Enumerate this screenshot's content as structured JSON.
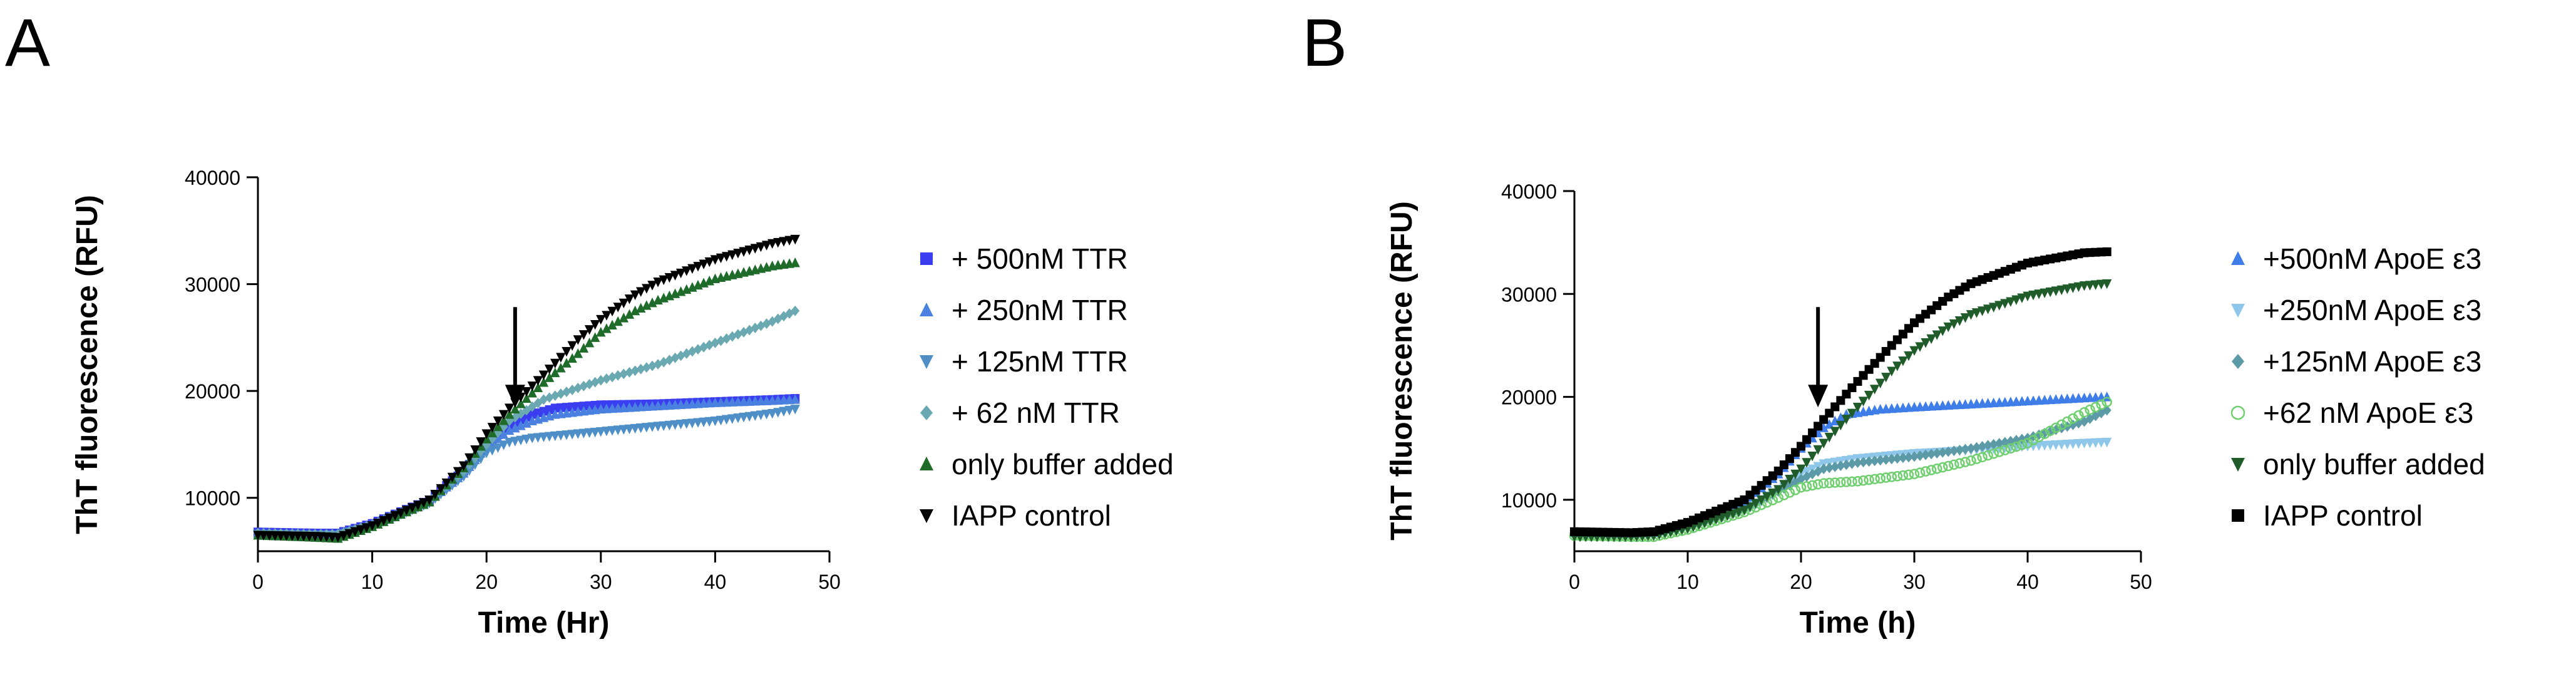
{
  "panels": [
    {
      "letter": "A"
    },
    {
      "letter": "B"
    }
  ],
  "chart_data": [
    {
      "type": "scatter",
      "panel": "A",
      "xlabel": "Time (Hr)",
      "ylabel": "ThT fluorescence (RFU)",
      "xlim": [
        0,
        50
      ],
      "ylim": [
        5000,
        40000
      ],
      "xticks": [
        0,
        10,
        20,
        30,
        40,
        50
      ],
      "yticks": [
        10000,
        20000,
        30000,
        40000
      ],
      "grid": false,
      "legend_position": "right",
      "annotation": {
        "type": "arrow",
        "x": 22.5,
        "y": 18000
      },
      "series": [
        {
          "name": "+ 500nM TTR",
          "marker": "square",
          "color": "#3a3df0",
          "points": [
            [
              0,
              6800
            ],
            [
              5,
              6700
            ],
            [
              7,
              6700
            ],
            [
              10,
              7600
            ],
            [
              15,
              9800
            ],
            [
              18,
              12500
            ],
            [
              20,
              15000
            ],
            [
              22,
              16800
            ],
            [
              24,
              17800
            ],
            [
              26,
              18400
            ],
            [
              30,
              18700
            ],
            [
              35,
              18800
            ],
            [
              40,
              19000
            ],
            [
              45,
              19200
            ],
            [
              47,
              19300
            ]
          ]
        },
        {
          "name": "+ 250nM TTR",
          "marker": "triangle-up",
          "color": "#4a80e0",
          "points": [
            [
              0,
              6700
            ],
            [
              5,
              6600
            ],
            [
              7,
              6600
            ],
            [
              10,
              7500
            ],
            [
              15,
              9700
            ],
            [
              18,
              12300
            ],
            [
              20,
              14800
            ],
            [
              22,
              16300
            ],
            [
              24,
              17200
            ],
            [
              26,
              17800
            ],
            [
              30,
              18300
            ],
            [
              35,
              18600
            ],
            [
              40,
              18900
            ],
            [
              45,
              19100
            ],
            [
              47,
              19200
            ]
          ]
        },
        {
          "name": "+ 125nM TTR",
          "marker": "triangle-down",
          "color": "#4f8fc7",
          "points": [
            [
              0,
              6600
            ],
            [
              5,
              6500
            ],
            [
              7,
              6500
            ],
            [
              10,
              7400
            ],
            [
              15,
              9500
            ],
            [
              18,
              12000
            ],
            [
              20,
              14200
            ],
            [
              22,
              15200
            ],
            [
              24,
              15600
            ],
            [
              26,
              15800
            ],
            [
              30,
              16200
            ],
            [
              35,
              16700
            ],
            [
              40,
              17200
            ],
            [
              45,
              17900
            ],
            [
              47,
              18300
            ]
          ]
        },
        {
          "name": "+ 62 nM TTR",
          "marker": "diamond",
          "color": "#6aa8b2",
          "points": [
            [
              0,
              6700
            ],
            [
              5,
              6600
            ],
            [
              7,
              6600
            ],
            [
              10,
              7500
            ],
            [
              15,
              9700
            ],
            [
              18,
              12500
            ],
            [
              20,
              15000
            ],
            [
              22,
              17200
            ],
            [
              25,
              19200
            ],
            [
              30,
              21000
            ],
            [
              35,
              22500
            ],
            [
              40,
              24500
            ],
            [
              45,
              26500
            ],
            [
              47,
              27500
            ]
          ]
        },
        {
          "name": "only buffer added",
          "marker": "triangle-up",
          "color": "#1f6b2a",
          "points": [
            [
              0,
              6500
            ],
            [
              5,
              6300
            ],
            [
              7,
              6200
            ],
            [
              10,
              7300
            ],
            [
              15,
              9600
            ],
            [
              18,
              12800
            ],
            [
              20,
              15500
            ],
            [
              22,
              17800
            ],
            [
              25,
              20800
            ],
            [
              28,
              23500
            ],
            [
              30,
              25500
            ],
            [
              33,
              27500
            ],
            [
              35,
              28500
            ],
            [
              40,
              30500
            ],
            [
              45,
              31700
            ],
            [
              47,
              32000
            ]
          ]
        },
        {
          "name": "IAPP control",
          "marker": "triangle-down",
          "color": "#000000",
          "points": [
            [
              0,
              6500
            ],
            [
              5,
              6400
            ],
            [
              7,
              6300
            ],
            [
              10,
              7400
            ],
            [
              15,
              9800
            ],
            [
              18,
              13000
            ],
            [
              20,
              16000
            ],
            [
              22,
              18400
            ],
            [
              25,
              21500
            ],
            [
              28,
              24800
            ],
            [
              30,
              26700
            ],
            [
              33,
              29000
            ],
            [
              35,
              30200
            ],
            [
              40,
              32300
            ],
            [
              45,
              33800
            ],
            [
              47,
              34200
            ]
          ]
        }
      ]
    },
    {
      "type": "scatter",
      "panel": "B",
      "xlabel": "Time (h)",
      "ylabel": "ThT fluorescence (RFU)",
      "xlim": [
        0,
        50
      ],
      "ylim": [
        5000,
        40000
      ],
      "xticks": [
        0,
        10,
        20,
        30,
        40,
        50
      ],
      "yticks": [
        10000,
        20000,
        30000,
        40000
      ],
      "grid": false,
      "legend_position": "right",
      "annotation": {
        "type": "arrow",
        "x": 21.5,
        "y": 18500
      },
      "series": [
        {
          "name": "+500nM ApoE ε3",
          "marker": "triangle-up",
          "color": "#3f7de8",
          "points": [
            [
              0,
              6800
            ],
            [
              5,
              6700
            ],
            [
              7,
              6800
            ],
            [
              10,
              7800
            ],
            [
              15,
              9800
            ],
            [
              18,
              12500
            ],
            [
              20,
              15000
            ],
            [
              22,
              17000
            ],
            [
              24,
              18300
            ],
            [
              27,
              18800
            ],
            [
              30,
              19000
            ],
            [
              35,
              19300
            ],
            [
              40,
              19600
            ],
            [
              45,
              19900
            ],
            [
              47,
              20000
            ]
          ]
        },
        {
          "name": "+250nM ApoE ε3",
          "marker": "triangle-down",
          "color": "#8fc7ea",
          "points": [
            [
              0,
              6600
            ],
            [
              5,
              6500
            ],
            [
              7,
              6600
            ],
            [
              10,
              7300
            ],
            [
              15,
              9000
            ],
            [
              18,
              10800
            ],
            [
              20,
              12500
            ],
            [
              22,
              13500
            ],
            [
              25,
              14000
            ],
            [
              30,
              14500
            ],
            [
              35,
              14800
            ],
            [
              40,
              15200
            ],
            [
              45,
              15500
            ],
            [
              47,
              15600
            ]
          ]
        },
        {
          "name": "+125nM ApoE ε3",
          "marker": "diamond",
          "color": "#5b9aa6",
          "points": [
            [
              0,
              6600
            ],
            [
              5,
              6500
            ],
            [
              7,
              6600
            ],
            [
              10,
              7300
            ],
            [
              15,
              9000
            ],
            [
              18,
              10800
            ],
            [
              20,
              12000
            ],
            [
              22,
              13000
            ],
            [
              25,
              13600
            ],
            [
              30,
              14200
            ],
            [
              35,
              15000
            ],
            [
              40,
              16000
            ],
            [
              45,
              17600
            ],
            [
              47,
              18700
            ]
          ]
        },
        {
          "name": "+62 nM ApoE ε3",
          "marker": "circle-open",
          "color": "#6fcf6f",
          "points": [
            [
              0,
              6500
            ],
            [
              5,
              6400
            ],
            [
              7,
              6400
            ],
            [
              10,
              7100
            ],
            [
              15,
              8800
            ],
            [
              18,
              10200
            ],
            [
              20,
              11200
            ],
            [
              22,
              11600
            ],
            [
              25,
              11800
            ],
            [
              30,
              12500
            ],
            [
              35,
              13800
            ],
            [
              40,
              15500
            ],
            [
              45,
              18500
            ],
            [
              47,
              19500
            ]
          ]
        },
        {
          "name": "only buffer added",
          "marker": "triangle-down",
          "color": "#1f5c2a",
          "points": [
            [
              0,
              6400
            ],
            [
              5,
              6400
            ],
            [
              7,
              6500
            ],
            [
              10,
              7200
            ],
            [
              15,
              9000
            ],
            [
              18,
              11000
            ],
            [
              20,
              13000
            ],
            [
              22,
              15500
            ],
            [
              25,
              19000
            ],
            [
              28,
              22500
            ],
            [
              30,
              24500
            ],
            [
              33,
              26800
            ],
            [
              35,
              28000
            ],
            [
              40,
              29800
            ],
            [
              45,
              30800
            ],
            [
              47,
              31000
            ]
          ]
        },
        {
          "name": "IAPP control",
          "marker": "square",
          "color": "#000000",
          "points": [
            [
              0,
              6900
            ],
            [
              5,
              6800
            ],
            [
              7,
              6900
            ],
            [
              10,
              7800
            ],
            [
              15,
              10000
            ],
            [
              18,
              12800
            ],
            [
              20,
              15200
            ],
            [
              22,
              17800
            ],
            [
              25,
              21500
            ],
            [
              28,
              25000
            ],
            [
              30,
              27200
            ],
            [
              33,
              29700
            ],
            [
              35,
              31000
            ],
            [
              40,
              33000
            ],
            [
              45,
              34000
            ],
            [
              47,
              34100
            ]
          ]
        }
      ]
    }
  ]
}
